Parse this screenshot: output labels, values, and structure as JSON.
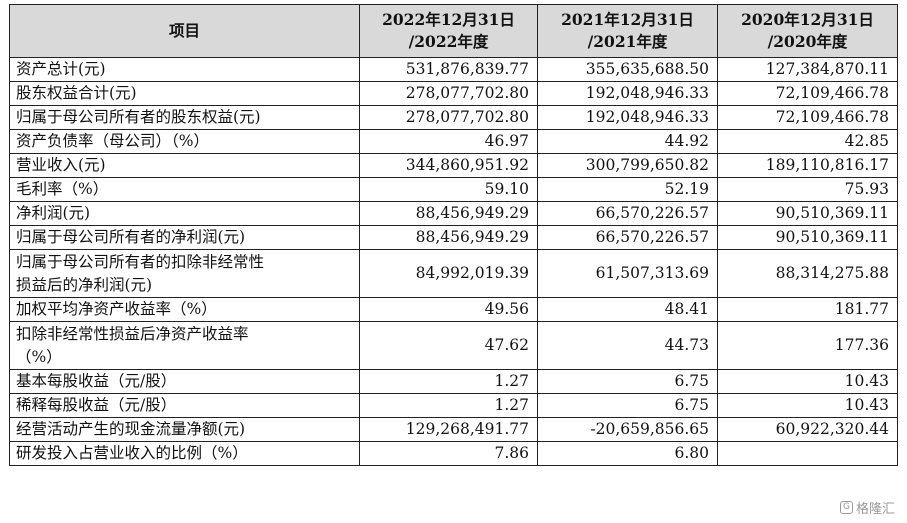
{
  "header": {
    "item": "项目",
    "col1_line1": "2022年12月31日",
    "col1_line2": "/2022年度",
    "col2_line1": "2021年12月31日",
    "col2_line2": "/2021年度",
    "col3_line1": "2020年12月31日",
    "col3_line2": "/2020年度"
  },
  "rows": [
    {
      "label": "资产总计(元)",
      "v2022": "531,876,839.77",
      "v2021": "355,635,688.50",
      "v2020": "127,384,870.11"
    },
    {
      "label": "股东权益合计(元)",
      "v2022": "278,077,702.80",
      "v2021": "192,048,946.33",
      "v2020": "72,109,466.78"
    },
    {
      "label": "归属于母公司所有者的股东权益(元)",
      "v2022": "278,077,702.80",
      "v2021": "192,048,946.33",
      "v2020": "72,109,466.78"
    },
    {
      "label": "资产负债率（母公司）（%）",
      "v2022": "46.97",
      "v2021": "44.92",
      "v2020": "42.85"
    },
    {
      "label": "营业收入(元)",
      "v2022": "344,860,951.92",
      "v2021": "300,799,650.82",
      "v2020": "189,110,816.17"
    },
    {
      "label": "毛利率（%）",
      "v2022": "59.10",
      "v2021": "52.19",
      "v2020": "75.93"
    },
    {
      "label": "净利润(元)",
      "v2022": "88,456,949.29",
      "v2021": "66,570,226.57",
      "v2020": "90,510,369.11"
    },
    {
      "label": "归属于母公司所有者的净利润(元)",
      "v2022": "88,456,949.29",
      "v2021": "66,570,226.57",
      "v2020": "90,510,369.11"
    },
    {
      "label_line1": "归属于母公司所有者的扣除非经常性",
      "label_line2": "损益后的净利润(元)",
      "v2022": "84,992,019.39",
      "v2021": "61,507,313.69",
      "v2020": "88,314,275.88"
    },
    {
      "label": "加权平均净资产收益率（%）",
      "v2022": "49.56",
      "v2021": "48.41",
      "v2020": "181.77"
    },
    {
      "label_line1": "扣除非经常性损益后净资产收益率",
      "label_line2": "（%）",
      "v2022": "47.62",
      "v2021": "44.73",
      "v2020": "177.36"
    },
    {
      "label": "基本每股收益（元/股）",
      "v2022": "1.27",
      "v2021": "6.75",
      "v2020": "10.43"
    },
    {
      "label": "稀释每股收益（元/股）",
      "v2022": "1.27",
      "v2021": "6.75",
      "v2020": "10.43"
    },
    {
      "label": "经营活动产生的现金流量净额(元)",
      "v2022": "129,268,491.77",
      "v2021": "-20,659,856.65",
      "v2020": "60,922,320.44"
    },
    {
      "label": "研发投入占营业收入的比例（%）",
      "v2022": "7.86",
      "v2021": "6.80",
      "v2020": ""
    }
  ],
  "watermark": {
    "icon": "G",
    "text": "格隆汇"
  }
}
